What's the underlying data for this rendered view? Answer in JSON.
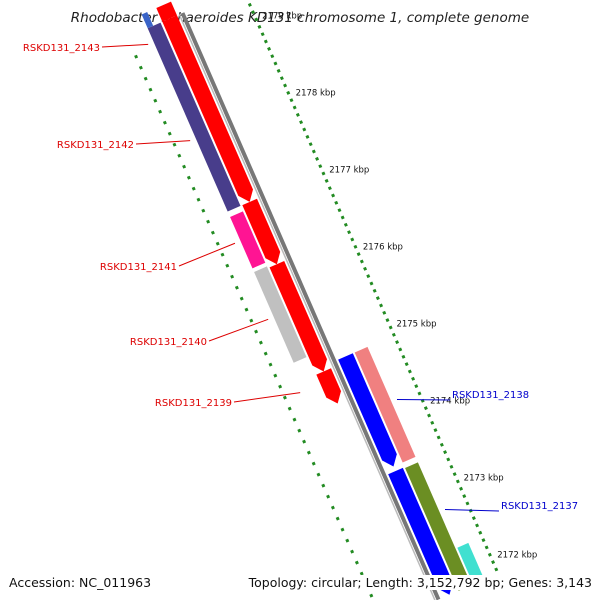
{
  "title": "Rhodobacter sphaeroides KD131 chromosome 1, complete genome",
  "accession": "Accession: NC_011963",
  "summary": "Topology: circular; Length: 3,152,792 bp; Genes: 3,143",
  "ruler": {
    "unit": "kbp",
    "ticks": [
      {
        "pos": 2179,
        "label": "2179 kbp"
      },
      {
        "pos": 2178,
        "label": "2178 kbp"
      },
      {
        "pos": 2177,
        "label": "2177 kbp"
      },
      {
        "pos": 2176,
        "label": "2176 kbp"
      },
      {
        "pos": 2175,
        "label": "2175 kbp"
      },
      {
        "pos": 2174,
        "label": "2174 kbp"
      },
      {
        "pos": 2173,
        "label": "2173 kbp"
      },
      {
        "pos": 2172,
        "label": "2172 kbp"
      }
    ]
  },
  "genes": [
    {
      "locus": "RSKD131_2143",
      "strand": "reverse",
      "color": "#dd0000"
    },
    {
      "locus": "RSKD131_2142",
      "strand": "reverse",
      "color": "#dd0000"
    },
    {
      "locus": "RSKD131_2141",
      "strand": "reverse",
      "color": "#dd0000"
    },
    {
      "locus": "RSKD131_2140",
      "strand": "reverse",
      "color": "#dd0000"
    },
    {
      "locus": "RSKD131_2139",
      "strand": "reverse",
      "color": "#dd0000"
    },
    {
      "locus": "RSKD131_2138",
      "strand": "forward",
      "color": "#0000cc"
    },
    {
      "locus": "RSKD131_2137",
      "strand": "forward",
      "color": "#0000cc"
    }
  ],
  "colors": {
    "reverse_strand": "#ff0000",
    "forward_strand": "#0000ff",
    "backbone": "#888888",
    "ruler": "#228B22"
  }
}
